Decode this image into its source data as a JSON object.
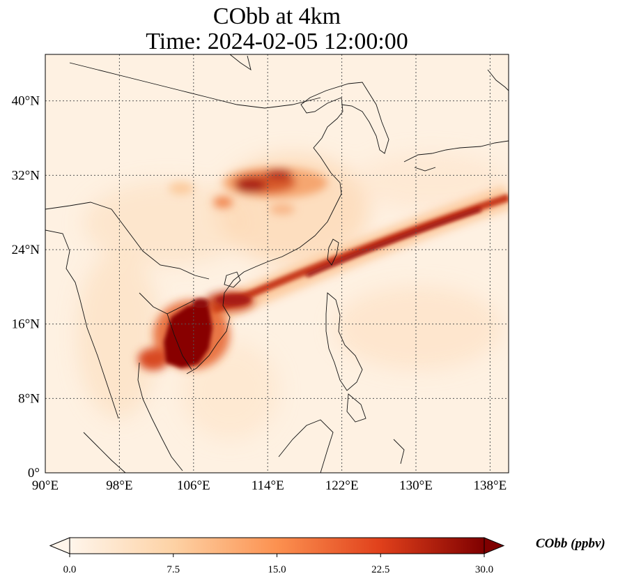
{
  "title_line1": "CObb at 4km",
  "title_line2": "Time: 2024-02-05 12:00:00",
  "lon_ticks": [
    "90°E",
    "98°E",
    "106°E",
    "114°E",
    "122°E",
    "130°E",
    "138°E"
  ],
  "lat_ticks": [
    "0°",
    "8°N",
    "16°N",
    "24°N",
    "32°N",
    "40°N"
  ],
  "lon_values": [
    90,
    98,
    106,
    114,
    122,
    130,
    138
  ],
  "lat_values": [
    0,
    8,
    16,
    24,
    32,
    40
  ],
  "extent": {
    "lon_min": 90,
    "lon_max": 140,
    "lat_min": 0,
    "lat_max": 45
  },
  "colorbar": {
    "label": "CObb (ppbv)",
    "ticks": [
      "0.0",
      "7.5",
      "15.0",
      "22.5",
      "30.0"
    ],
    "tick_values": [
      0,
      7.5,
      15,
      22.5,
      30
    ],
    "range": [
      0,
      30
    ],
    "colormap": [
      "#fff5eb",
      "#fdd9b3",
      "#fdac6b",
      "#f06c2a",
      "#c93c1e",
      "#960808",
      "#7f0000"
    ]
  },
  "colors": {
    "grid": "#555555",
    "coast": "#111111"
  }
}
